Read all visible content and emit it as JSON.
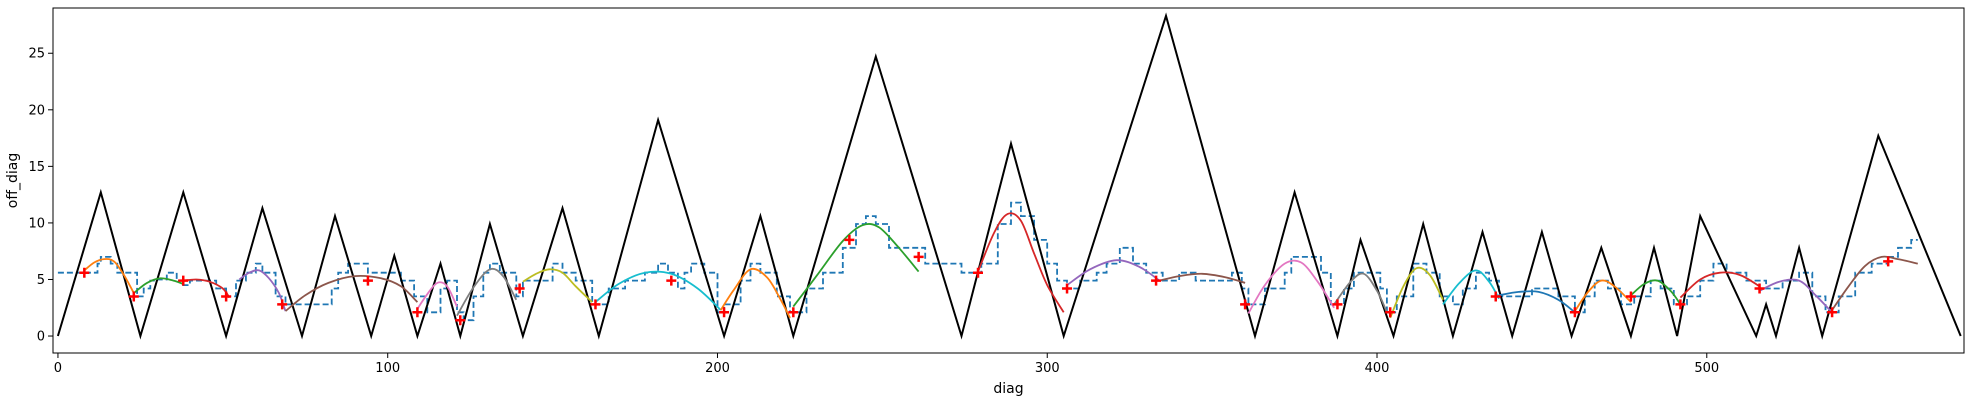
{
  "chart_data": {
    "type": "line",
    "title": "",
    "xlabel": "diag",
    "ylabel": "off_diag",
    "xlim": [
      -1.5,
      578
    ],
    "ylim": [
      -1.5,
      29
    ],
    "xticks": [
      0,
      100,
      200,
      300,
      400,
      500
    ],
    "yticks": [
      0,
      5,
      10,
      15,
      20,
      25
    ],
    "grid": false,
    "legend": "none",
    "colors": {
      "triangle": "#000000",
      "step": "#1f77b4",
      "markers": "#ff0000",
      "fits": [
        "#ff7f0e",
        "#2ca02c",
        "#d62728",
        "#9467bd",
        "#8c564b",
        "#e377c2",
        "#7f7f7f",
        "#bcbd22",
        "#17becf",
        "#1f77b4"
      ]
    },
    "triangle_series": [
      [
        0,
        0
      ],
      [
        13,
        12.7
      ],
      [
        25,
        0
      ],
      [
        38,
        12.7
      ],
      [
        51,
        0
      ],
      [
        62,
        11.3
      ],
      [
        74,
        0
      ],
      [
        84,
        10.6
      ],
      [
        95,
        0
      ],
      [
        102,
        7.1
      ],
      [
        109,
        0
      ],
      [
        116,
        6.4
      ],
      [
        122,
        0
      ],
      [
        131,
        9.9
      ],
      [
        141,
        0
      ],
      [
        153,
        11.3
      ],
      [
        164,
        0
      ],
      [
        182,
        19.1
      ],
      [
        202,
        0
      ],
      [
        213,
        10.6
      ],
      [
        223,
        0
      ],
      [
        248,
        24.7
      ],
      [
        274,
        0
      ],
      [
        289,
        17
      ],
      [
        305,
        0
      ],
      [
        336,
        28.3
      ],
      [
        363,
        0
      ],
      [
        375,
        12.7
      ],
      [
        388,
        0
      ],
      [
        395,
        8.5
      ],
      [
        405,
        0
      ],
      [
        414,
        9.9
      ],
      [
        423,
        0
      ],
      [
        432,
        9.2
      ],
      [
        441,
        0
      ],
      [
        450,
        9.2
      ],
      [
        459,
        0
      ],
      [
        468,
        7.8
      ],
      [
        477,
        0
      ],
      [
        484,
        7.8
      ],
      [
        491,
        0
      ],
      [
        498,
        10.6
      ],
      [
        515,
        0
      ],
      [
        518,
        2.8
      ],
      [
        521,
        0
      ],
      [
        528,
        7.8
      ],
      [
        535,
        0
      ],
      [
        552,
        17.7
      ],
      [
        577,
        0
      ]
    ],
    "step_series": [
      [
        0,
        5.6
      ],
      [
        12,
        6.4
      ],
      [
        13,
        7
      ],
      [
        15,
        7
      ],
      [
        16,
        6.4
      ],
      [
        18,
        5.6
      ],
      [
        24,
        3.5
      ],
      [
        26,
        4.2
      ],
      [
        28,
        4.9
      ],
      [
        30,
        5
      ],
      [
        33,
        5.6
      ],
      [
        36,
        4.9
      ],
      [
        38,
        4.5
      ],
      [
        40,
        4.9
      ],
      [
        45,
        4.9
      ],
      [
        48,
        4.2
      ],
      [
        51,
        3.5
      ],
      [
        54,
        4.9
      ],
      [
        57,
        5.6
      ],
      [
        60,
        6.4
      ],
      [
        62,
        5.6
      ],
      [
        66,
        3.5
      ],
      [
        69,
        2.8
      ],
      [
        74,
        2.8
      ],
      [
        80,
        2.8
      ],
      [
        83,
        4.2
      ],
      [
        85,
        5.6
      ],
      [
        88,
        6.4
      ],
      [
        94,
        5.6
      ],
      [
        100,
        5.6
      ],
      [
        104,
        4.9
      ],
      [
        108,
        3.5
      ],
      [
        112,
        2.1
      ],
      [
        116,
        4.2
      ],
      [
        118,
        4.9
      ],
      [
        121,
        2.1
      ],
      [
        123,
        1.4
      ],
      [
        126,
        3.5
      ],
      [
        129,
        5.6
      ],
      [
        131,
        6.4
      ],
      [
        134,
        5.6
      ],
      [
        139,
        3.5
      ],
      [
        141,
        4.9
      ],
      [
        146,
        4.9
      ],
      [
        150,
        6.4
      ],
      [
        153,
        5.6
      ],
      [
        157,
        4.9
      ],
      [
        162,
        2.8
      ],
      [
        167,
        4.2
      ],
      [
        172,
        4.9
      ],
      [
        178,
        5.6
      ],
      [
        182,
        6.4
      ],
      [
        185,
        5.6
      ],
      [
        188,
        4.2
      ],
      [
        190,
        5.6
      ],
      [
        192,
        6.4
      ],
      [
        196,
        5.6
      ],
      [
        200,
        2.1
      ],
      [
        202,
        2.8
      ],
      [
        207,
        4.9
      ],
      [
        210,
        6.4
      ],
      [
        213,
        5.6
      ],
      [
        218,
        3.5
      ],
      [
        222,
        2.1
      ],
      [
        227,
        4.2
      ],
      [
        232,
        5.6
      ],
      [
        238,
        7.8
      ],
      [
        242,
        9.9
      ],
      [
        245,
        10.6
      ],
      [
        248,
        9.9
      ],
      [
        252,
        7.8
      ],
      [
        260,
        7.8
      ],
      [
        263,
        6.4
      ],
      [
        270,
        6.4
      ],
      [
        274,
        5.6
      ],
      [
        280,
        6.4
      ],
      [
        285,
        9.9
      ],
      [
        289,
        11.8
      ],
      [
        292,
        10.6
      ],
      [
        296,
        8.5
      ],
      [
        300,
        6.4
      ],
      [
        303,
        4.9
      ],
      [
        306,
        4.2
      ],
      [
        310,
        4.9
      ],
      [
        315,
        5.6
      ],
      [
        318,
        6.4
      ],
      [
        322,
        7.8
      ],
      [
        326,
        6.4
      ],
      [
        330,
        5.6
      ],
      [
        335,
        4.9
      ],
      [
        340,
        5.6
      ],
      [
        345,
        4.9
      ],
      [
        352,
        4.9
      ],
      [
        356,
        5.6
      ],
      [
        359,
        4.2
      ],
      [
        361,
        2.8
      ],
      [
        366,
        4.2
      ],
      [
        372,
        5.6
      ],
      [
        374,
        7
      ],
      [
        378,
        7
      ],
      [
        383,
        5.6
      ],
      [
        386,
        2.8
      ],
      [
        390,
        4.2
      ],
      [
        393,
        5.6
      ],
      [
        398,
        5.6
      ],
      [
        401,
        4.2
      ],
      [
        403,
        2.1
      ],
      [
        406,
        3.5
      ],
      [
        411,
        6.4
      ],
      [
        415,
        5.6
      ],
      [
        419,
        3.5
      ],
      [
        423,
        2.8
      ],
      [
        426,
        4.2
      ],
      [
        430,
        5.6
      ],
      [
        434,
        4.9
      ],
      [
        437,
        3.5
      ],
      [
        442,
        3.5
      ],
      [
        447,
        4.2
      ],
      [
        452,
        4.2
      ],
      [
        455,
        3.5
      ],
      [
        460,
        2.1
      ],
      [
        463,
        3.5
      ],
      [
        466,
        4.9
      ],
      [
        470,
        4.2
      ],
      [
        474,
        2.8
      ],
      [
        478,
        3.5
      ],
      [
        483,
        4.9
      ],
      [
        486,
        4.2
      ],
      [
        490,
        2.8
      ],
      [
        494,
        3.5
      ],
      [
        498,
        4.9
      ],
      [
        502,
        6.4
      ],
      [
        506,
        5.6
      ],
      [
        512,
        4.9
      ],
      [
        518,
        4.2
      ],
      [
        523,
        4.9
      ],
      [
        528,
        5.6
      ],
      [
        532,
        3.5
      ],
      [
        536,
        2.1
      ],
      [
        540,
        3.5
      ],
      [
        545,
        5.6
      ],
      [
        550,
        6.4
      ],
      [
        555,
        7
      ],
      [
        558,
        7.8
      ],
      [
        562,
        8.5
      ],
      [
        564,
        8.5
      ]
    ],
    "markers": [
      [
        8,
        5.6
      ],
      [
        23,
        3.5
      ],
      [
        38,
        4.9
      ],
      [
        51,
        3.5
      ],
      [
        68,
        2.8
      ],
      [
        94,
        4.9
      ],
      [
        109,
        2.1
      ],
      [
        122,
        1.4
      ],
      [
        140,
        4.2
      ],
      [
        163,
        2.8
      ],
      [
        186,
        4.9
      ],
      [
        202,
        2.1
      ],
      [
        223,
        2.1
      ],
      [
        240,
        8.5
      ],
      [
        261,
        7
      ],
      [
        279,
        5.6
      ],
      [
        306,
        4.2
      ],
      [
        333,
        4.9
      ],
      [
        360,
        2.8
      ],
      [
        388,
        2.8
      ],
      [
        404,
        2.1
      ],
      [
        436,
        3.5
      ],
      [
        460,
        2.1
      ],
      [
        477,
        3.5
      ],
      [
        492,
        2.8
      ],
      [
        516,
        4.2
      ],
      [
        538,
        2.1
      ],
      [
        555,
        6.6
      ]
    ],
    "fit_segments": [
      {
        "color": "#ff7f0e",
        "points": [
          [
            8,
            5.8
          ],
          [
            11,
            6.5
          ],
          [
            14,
            6.8
          ],
          [
            17,
            6.6
          ],
          [
            20,
            5.4
          ],
          [
            23,
            3.8
          ]
        ]
      },
      {
        "color": "#2ca02c",
        "points": [
          [
            23,
            3.8
          ],
          [
            27,
            4.7
          ],
          [
            31,
            5.1
          ],
          [
            35,
            4.9
          ],
          [
            38,
            4.6
          ]
        ]
      },
      {
        "color": "#d62728",
        "points": [
          [
            38,
            4.9
          ],
          [
            42,
            5
          ],
          [
            46,
            4.8
          ],
          [
            50,
            4.2
          ],
          [
            52,
            3.4
          ]
        ]
      },
      {
        "color": "#9467bd",
        "points": [
          [
            55,
            5
          ],
          [
            58,
            5.6
          ],
          [
            61,
            5.8
          ],
          [
            64,
            5.1
          ],
          [
            67,
            3.8
          ],
          [
            69,
            2.2
          ]
        ]
      },
      {
        "color": "#8c564b",
        "points": [
          [
            69,
            2.2
          ],
          [
            75,
            3.6
          ],
          [
            82,
            4.7
          ],
          [
            90,
            5.3
          ],
          [
            98,
            5.1
          ],
          [
            104,
            4.4
          ],
          [
            109,
            3
          ]
        ]
      },
      {
        "color": "#e377c2",
        "points": [
          [
            109,
            2.4
          ],
          [
            112,
            3.7
          ],
          [
            115,
            4.7
          ],
          [
            118,
            4.4
          ],
          [
            121,
            2.6
          ]
        ]
      },
      {
        "color": "#7f7f7f",
        "points": [
          [
            121,
            1.8
          ],
          [
            126,
            4.3
          ],
          [
            131,
            5.9
          ],
          [
            135,
            5.3
          ],
          [
            139,
            3.2
          ]
        ]
      },
      {
        "color": "#bcbd22",
        "points": [
          [
            141,
            4.8
          ],
          [
            145,
            5.5
          ],
          [
            149,
            5.9
          ],
          [
            153,
            5.6
          ],
          [
            157,
            4.4
          ],
          [
            162,
            3
          ]
        ]
      },
      {
        "color": "#17becf",
        "points": [
          [
            163,
            3
          ],
          [
            170,
            4.6
          ],
          [
            178,
            5.6
          ],
          [
            186,
            5.5
          ],
          [
            194,
            4.2
          ],
          [
            201,
            2.3
          ]
        ]
      },
      {
        "color": "#ff7f0e",
        "points": [
          [
            201,
            2.3
          ],
          [
            205,
            4.1
          ],
          [
            210,
            5.9
          ],
          [
            215,
            5.2
          ],
          [
            219,
            3.3
          ],
          [
            222,
            1.6
          ]
        ]
      },
      {
        "color": "#2ca02c",
        "points": [
          [
            223,
            2.6
          ],
          [
            230,
            5.3
          ],
          [
            238,
            8.4
          ],
          [
            244,
            9.8
          ],
          [
            249,
            9.6
          ],
          [
            255,
            7.8
          ],
          [
            261,
            5.7
          ]
        ]
      },
      {
        "color": "#d62728",
        "points": [
          [
            279,
            5.7
          ],
          [
            284,
            9.2
          ],
          [
            288,
            10.8
          ],
          [
            292,
            10.2
          ],
          [
            296,
            7.3
          ],
          [
            300,
            4.5
          ],
          [
            305,
            2.1
          ]
        ]
      },
      {
        "color": "#9467bd",
        "points": [
          [
            306,
            4.5
          ],
          [
            313,
            5.9
          ],
          [
            321,
            6.7
          ],
          [
            328,
            6.1
          ],
          [
            334,
            4.9
          ]
        ]
      },
      {
        "color": "#8c564b",
        "points": [
          [
            334,
            4.9
          ],
          [
            340,
            5.3
          ],
          [
            347,
            5.5
          ],
          [
            354,
            5.2
          ],
          [
            360,
            4.7
          ]
        ]
      },
      {
        "color": "#e377c2",
        "points": [
          [
            361,
            2
          ],
          [
            366,
            4.5
          ],
          [
            372,
            6.4
          ],
          [
            377,
            6.5
          ],
          [
            382,
            4.8
          ],
          [
            387,
            2.5
          ]
        ]
      },
      {
        "color": "#7f7f7f",
        "points": [
          [
            387,
            2.8
          ],
          [
            392,
            4.8
          ],
          [
            396,
            5.5
          ],
          [
            400,
            4
          ],
          [
            403,
            2.1
          ]
        ]
      },
      {
        "color": "#bcbd22",
        "points": [
          [
            404,
            1.6
          ],
          [
            408,
            4.4
          ],
          [
            412,
            6
          ],
          [
            416,
            5.4
          ],
          [
            420,
            3.2
          ]
        ]
      },
      {
        "color": "#17becf",
        "points": [
          [
            420,
            2.8
          ],
          [
            425,
            4.7
          ],
          [
            430,
            5.8
          ],
          [
            434,
            4.8
          ],
          [
            437,
            3.3
          ]
        ]
      },
      {
        "color": "#1f77b4",
        "points": [
          [
            437,
            3.6
          ],
          [
            443,
            3.9
          ],
          [
            449,
            3.9
          ],
          [
            455,
            3.2
          ],
          [
            460,
            2.1
          ]
        ]
      },
      {
        "color": "#ff7f0e",
        "points": [
          [
            460,
            2.2
          ],
          [
            464,
            3.9
          ],
          [
            468,
            4.9
          ],
          [
            472,
            4.4
          ],
          [
            477,
            3
          ]
        ]
      },
      {
        "color": "#2ca02c",
        "points": [
          [
            477,
            3.6
          ],
          [
            481,
            4.6
          ],
          [
            485,
            4.9
          ],
          [
            489,
            4
          ],
          [
            492,
            2.8
          ]
        ]
      },
      {
        "color": "#d62728",
        "points": [
          [
            492,
            3.4
          ],
          [
            498,
            5
          ],
          [
            504,
            5.6
          ],
          [
            510,
            5.4
          ],
          [
            516,
            4.4
          ]
        ]
      },
      {
        "color": "#9467bd",
        "points": [
          [
            516,
            4
          ],
          [
            522,
            4.8
          ],
          [
            528,
            4.9
          ],
          [
            533,
            3.6
          ],
          [
            538,
            2.1
          ]
        ]
      },
      {
        "color": "#8c564b",
        "points": [
          [
            538,
            2.3
          ],
          [
            543,
            4.4
          ],
          [
            548,
            6.2
          ],
          [
            553,
            7
          ],
          [
            558,
            6.8
          ],
          [
            564,
            6.4
          ]
        ]
      }
    ]
  }
}
